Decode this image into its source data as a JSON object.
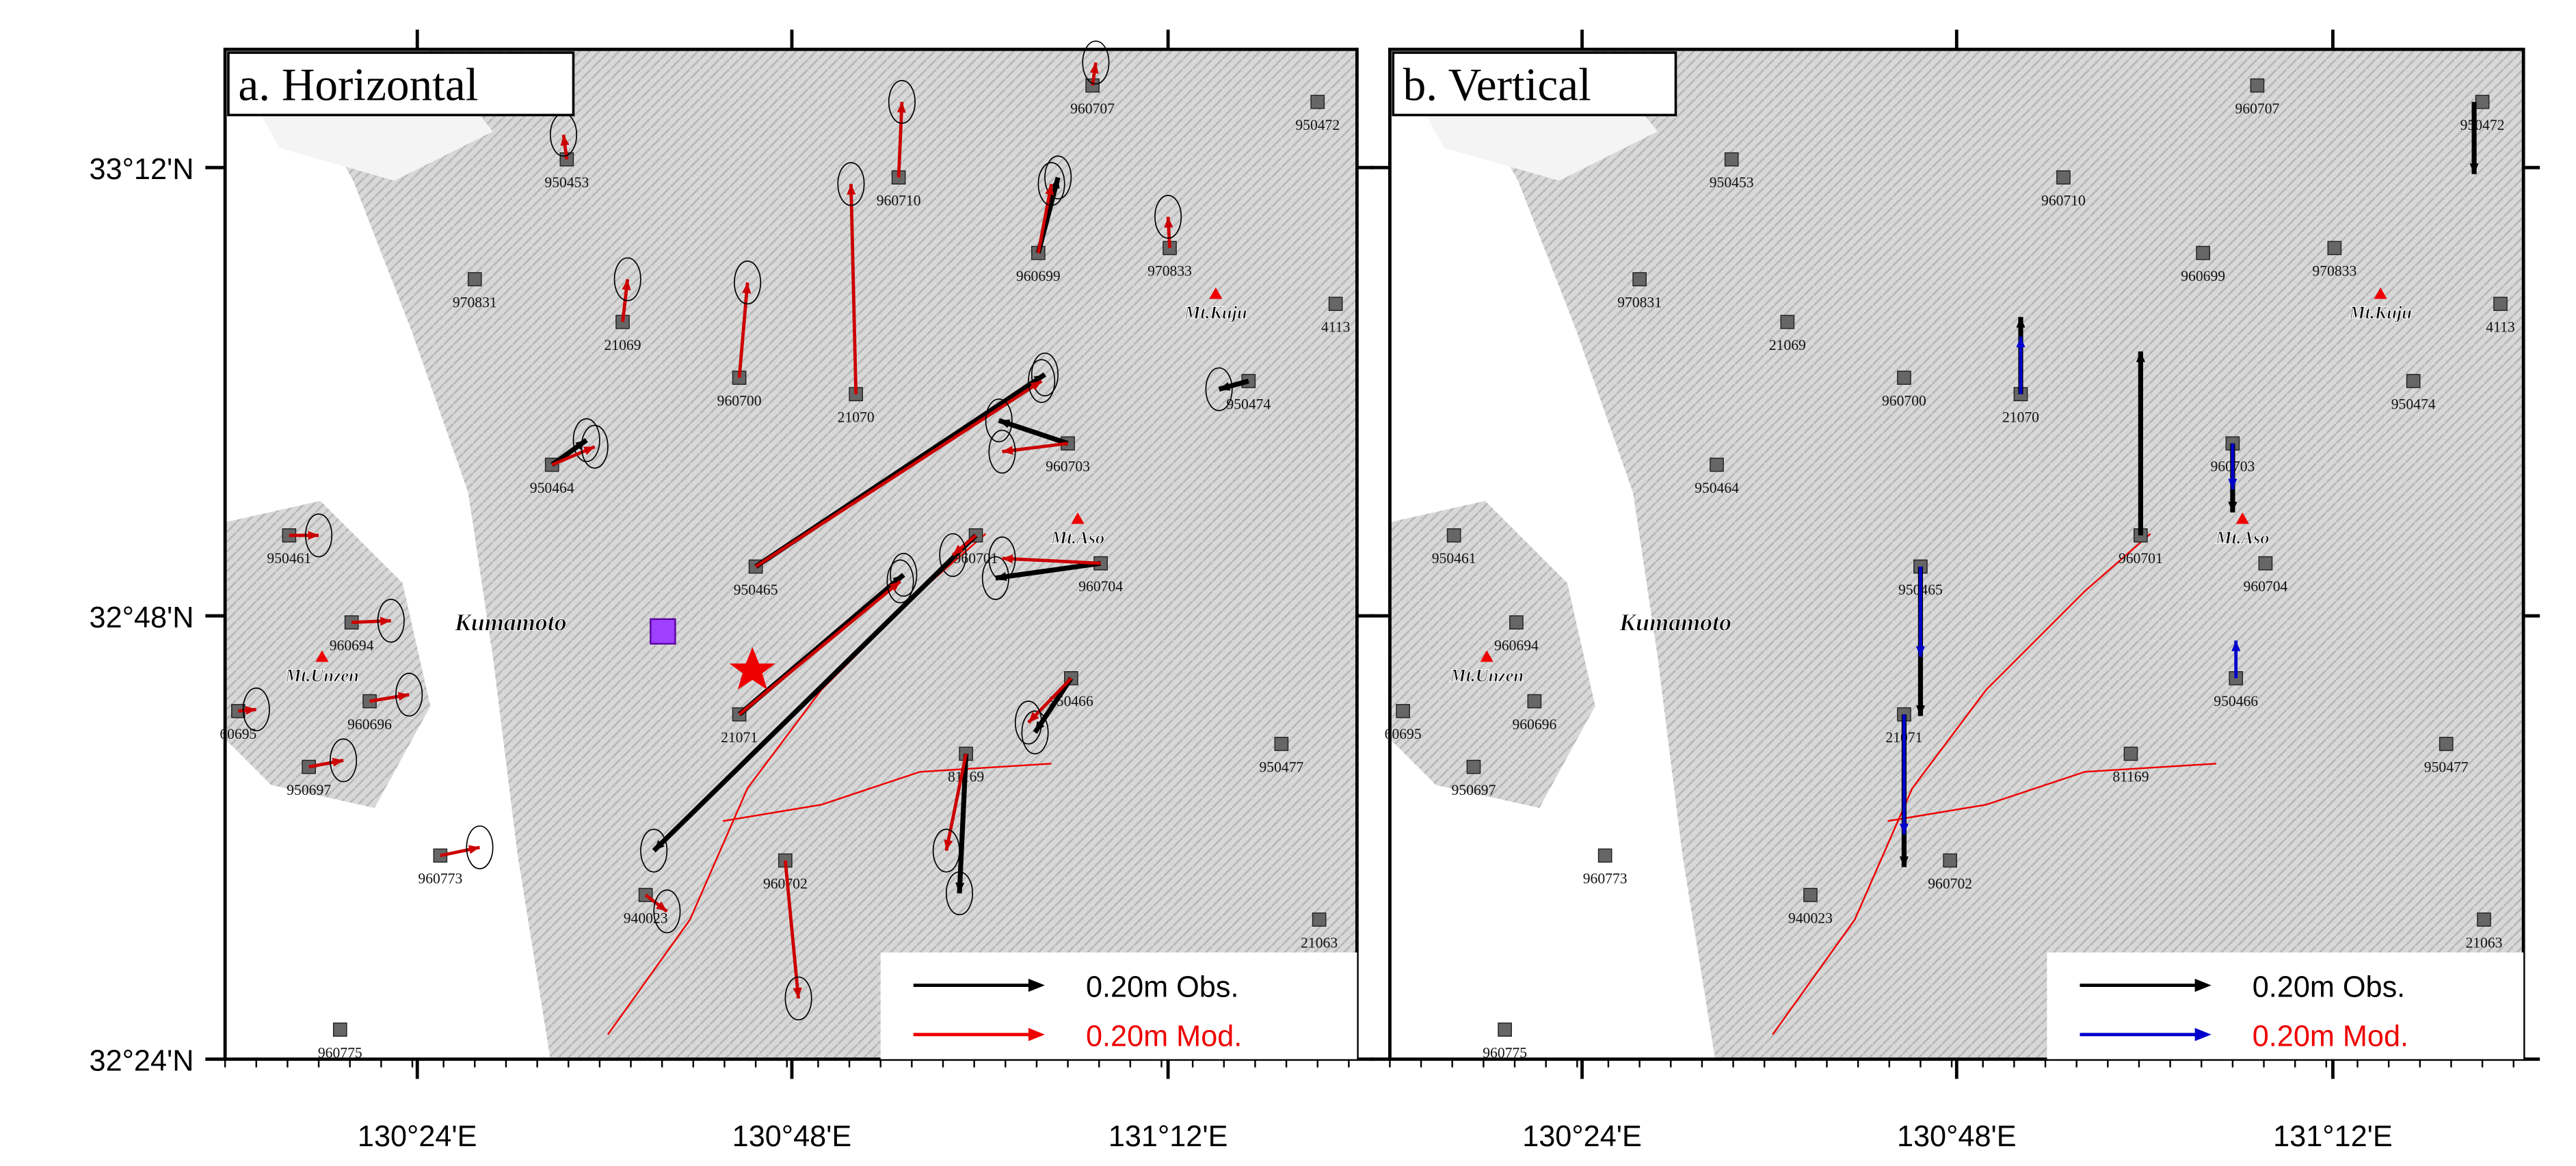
{
  "panels": [
    {
      "title": "a. Horizontal",
      "legend": [
        "0.20m Obs.",
        "0.20m Mod."
      ]
    },
    {
      "title": "b. Vertical",
      "legend": [
        "0.20m Obs.",
        "0.20m Mod."
      ]
    }
  ],
  "axes": {
    "lon": [
      "130°24'E",
      "130°48'E",
      "131°12'E"
    ],
    "lat": [
      "33°12'N",
      "32°48'N",
      "32°24'N"
    ]
  },
  "places": [
    "Kumamoto",
    "Mt.Unzen",
    "Mt.Aso",
    "Mt.Kuju"
  ],
  "stations": [
    "950453",
    "960710",
    "960707",
    "950472",
    "970831",
    "21069",
    "960700",
    "21070",
    "960699",
    "970833",
    "4113",
    "950474",
    "950464",
    "960703",
    "950461",
    "950465",
    "960701",
    "960704",
    "960694",
    "960696",
    "60695",
    "950466",
    "21071",
    "950697",
    "81169",
    "950477",
    "960773",
    "960702",
    "940023",
    "21063",
    "960775"
  ]
}
